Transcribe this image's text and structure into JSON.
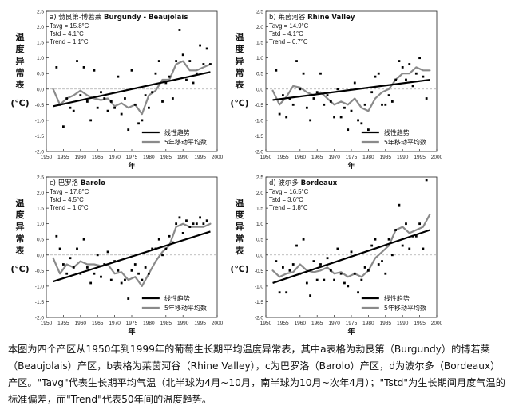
{
  "caption": "本图为四个产区从1950年到1999年的葡萄生长期平均温度异常表，其中a表格为勃艮第（Burgundy）的博若莱（Beaujolais）产区，b表格为莱茵河谷（Rhine Valley），c为巴罗洛（Barolo）产区，d为波尔多（Bordeaux）产区。\"Tavg\"代表生长期平均气温（北半球为4月~10月，南半球为10月~次年4月）；\"Tstd\"为生长期间月度气温的标准偏差，而\"Trend\"代表50年间的温度趋势。",
  "chart_data": [
    {
      "type": "scatter",
      "panel_label": "a)",
      "title_cn": "勃艮第-博若莱",
      "title_en": "Burgundy - Beaujolais",
      "stats": [
        "Tavg = 15.8°C",
        "Tstd =   4.1°C",
        "Trend = 1.1°C"
      ],
      "ylabel": "温度异常表",
      "yunit": "(℃)",
      "xlabel": "年",
      "xlim": [
        1950,
        2000
      ],
      "ylim": [
        -2.0,
        2.5
      ],
      "xticks": [
        "1950",
        "1955",
        "1960",
        "1965",
        "1970",
        "1975",
        "1980",
        "1985",
        "1990",
        "1995",
        "2000"
      ],
      "yticks": [
        "-2.0",
        "-1.5",
        "-1.0",
        "-0.5",
        "0.0",
        "0.5",
        "1.0",
        "1.5",
        "2.0",
        "2.5"
      ],
      "legend": [
        "线性趋势",
        "5年移动平均数"
      ],
      "legend_position": "bottom-right",
      "trend": {
        "x": [
          1952,
          1998
        ],
        "y": [
          -0.55,
          0.55
        ]
      },
      "points": {
        "x": [
          1953,
          1954,
          1955,
          1956,
          1957,
          1958,
          1959,
          1960,
          1961,
          1962,
          1963,
          1964,
          1965,
          1966,
          1967,
          1968,
          1969,
          1970,
          1971,
          1972,
          1973,
          1974,
          1975,
          1976,
          1977,
          1978,
          1979,
          1980,
          1981,
          1982,
          1983,
          1984,
          1985,
          1986,
          1987,
          1988,
          1989,
          1990,
          1991,
          1992,
          1993,
          1994,
          1995,
          1996,
          1997,
          1998
        ],
        "y": [
          0.7,
          -0.5,
          -1.2,
          -0.3,
          -0.6,
          -0.7,
          0.9,
          -0.2,
          0.7,
          -0.4,
          -1.0,
          0.6,
          -0.6,
          -0.1,
          -0.3,
          -0.7,
          -0.4,
          -0.6,
          0.4,
          -0.8,
          -0.3,
          -1.3,
          0.6,
          -0.5,
          -1.1,
          -1.0,
          -0.2,
          -0.6,
          -0.1,
          0.5,
          0.9,
          -0.4,
          0.2,
          0.4,
          -0.3,
          0.9,
          1.9,
          1.1,
          0.3,
          0.9,
          0.2,
          0.5,
          1.4,
          0.8,
          1.3,
          0.8
        ]
      },
      "moving_avg": {
        "x": [
          1952,
          1954,
          1956,
          1958,
          1960,
          1962,
          1964,
          1966,
          1968,
          1970,
          1972,
          1974,
          1976,
          1978,
          1980,
          1982,
          1984,
          1986,
          1988,
          1990,
          1992,
          1994,
          1996,
          1998
        ],
        "y": [
          0.0,
          -0.5,
          -0.3,
          -0.2,
          -0.05,
          -0.2,
          -0.3,
          -0.35,
          -0.3,
          -0.55,
          -0.45,
          -0.6,
          -0.5,
          -0.8,
          -0.2,
          -0.05,
          0.3,
          0.3,
          0.8,
          0.9,
          0.6,
          0.6,
          0.7,
          0.8
        ]
      }
    },
    {
      "type": "scatter",
      "panel_label": "b)",
      "title_cn": "莱茵河谷",
      "title_en": "Rhine Valley",
      "stats": [
        "Tavg = 14.9°C",
        "Tstd =   4.1°C",
        "Trend = 0.7°C"
      ],
      "ylabel": "温度异常表",
      "yunit": "(℃)",
      "xlabel": "年",
      "xlim": [
        1950,
        2000
      ],
      "ylim": [
        -2.0,
        2.5
      ],
      "xticks": [
        "1950",
        "1955",
        "1960",
        "1965",
        "1970",
        "1975",
        "1980",
        "1985",
        "1990",
        "1995",
        "2000"
      ],
      "yticks": [
        "-2.0",
        "-1.5",
        "-1.0",
        "-0.5",
        "0.0",
        "0.5",
        "1.0",
        "1.5",
        "2.0",
        "2.5"
      ],
      "legend": [
        "线性趋势",
        "5年移动平均数"
      ],
      "legend_position": "bottom-right",
      "trend": {
        "x": [
          1952,
          1998
        ],
        "y": [
          -0.35,
          0.3
        ]
      },
      "points": {
        "x": [
          1953,
          1954,
          1955,
          1956,
          1957,
          1958,
          1959,
          1960,
          1961,
          1962,
          1963,
          1964,
          1965,
          1966,
          1967,
          1968,
          1969,
          1970,
          1971,
          1972,
          1973,
          1974,
          1975,
          1976,
          1977,
          1978,
          1979,
          1980,
          1981,
          1982,
          1983,
          1984,
          1985,
          1986,
          1987,
          1988,
          1989,
          1990,
          1991,
          1992,
          1993,
          1994,
          1995,
          1996,
          1997
        ],
        "y": [
          0.6,
          -0.8,
          -0.2,
          -0.9,
          -0.3,
          -0.5,
          0.9,
          0.0,
          0.5,
          -0.6,
          -1.0,
          -0.3,
          -0.1,
          0.5,
          -0.5,
          -0.2,
          -0.4,
          -0.9,
          0.0,
          -0.9,
          -0.6,
          -1.3,
          -0.7,
          0.2,
          -1.0,
          -1.1,
          -0.5,
          -1.3,
          -0.1,
          0.4,
          0.5,
          -0.5,
          -0.5,
          -0.2,
          -0.4,
          0.3,
          0.9,
          0.7,
          0.3,
          0.8,
          0.1,
          0.5,
          1.0,
          0.4,
          -0.3
        ]
      },
      "moving_avg": {
        "x": [
          1952,
          1954,
          1956,
          1958,
          1960,
          1962,
          1964,
          1966,
          1968,
          1970,
          1972,
          1974,
          1976,
          1978,
          1980,
          1982,
          1984,
          1986,
          1988,
          1990,
          1992,
          1994,
          1996,
          1998
        ],
        "y": [
          -0.05,
          -0.5,
          -0.25,
          0.1,
          0.05,
          -0.1,
          -0.2,
          -0.1,
          -0.3,
          -0.5,
          -0.4,
          -0.5,
          -0.3,
          -0.6,
          -0.7,
          -0.3,
          -0.1,
          0.0,
          0.3,
          0.5,
          0.5,
          0.7,
          0.6,
          0.6
        ]
      }
    },
    {
      "type": "scatter",
      "panel_label": "c)",
      "title_cn": "巴罗洛",
      "title_en": "Barolo",
      "stats": [
        "Tavg = 17.8°C",
        "Tstd =   4.5°C",
        "Trend = 1.6°C"
      ],
      "ylabel": "温度异常表",
      "yunit": "(℃)",
      "xlabel": "年",
      "xlim": [
        1950,
        2000
      ],
      "ylim": [
        -2.0,
        2.5
      ],
      "xticks": [
        "1950",
        "1955",
        "1960",
        "1965",
        "1970",
        "1975",
        "1980",
        "1985",
        "1990",
        "1995",
        "2000"
      ],
      "yticks": [
        "-2.0",
        "-1.5",
        "-1.0",
        "-0.5",
        "0.0",
        "0.5",
        "1.0",
        "1.5",
        "2.0",
        "2.5"
      ],
      "legend": [
        "线性趋势",
        "5年移动平均数"
      ],
      "legend_position": "bottom-right",
      "trend": {
        "x": [
          1952,
          1998
        ],
        "y": [
          -0.85,
          0.75
        ]
      },
      "points": {
        "x": [
          1953,
          1954,
          1955,
          1956,
          1957,
          1958,
          1959,
          1960,
          1961,
          1962,
          1963,
          1964,
          1965,
          1966,
          1967,
          1968,
          1969,
          1970,
          1971,
          1972,
          1973,
          1974,
          1975,
          1976,
          1977,
          1978,
          1979,
          1980,
          1981,
          1982,
          1983,
          1984,
          1985,
          1986,
          1987,
          1988,
          1989,
          1990,
          1991,
          1992,
          1993,
          1994,
          1995,
          1996,
          1997
        ],
        "y": [
          0.6,
          0.2,
          -0.3,
          -0.6,
          -0.1,
          -0.4,
          0.2,
          -0.6,
          0.5,
          -0.4,
          -0.9,
          -0.6,
          0.0,
          -0.7,
          -0.3,
          0.1,
          -0.8,
          -0.2,
          -0.5,
          -0.9,
          -0.8,
          -1.4,
          -0.5,
          -0.3,
          -0.6,
          -0.8,
          -0.4,
          -0.6,
          0.2,
          0.2,
          0.5,
          0.0,
          0.2,
          0.6,
          0.4,
          1.0,
          1.2,
          0.7,
          1.1,
          0.9,
          1.0,
          1.0,
          1.2,
          1.0,
          1.1
        ]
      },
      "moving_avg": {
        "x": [
          1952,
          1954,
          1956,
          1958,
          1960,
          1962,
          1964,
          1966,
          1968,
          1970,
          1972,
          1974,
          1976,
          1978,
          1980,
          1982,
          1984,
          1986,
          1988,
          1990,
          1992,
          1994,
          1996,
          1998
        ],
        "y": [
          -0.1,
          -0.6,
          -0.3,
          -0.4,
          -0.2,
          -0.3,
          -0.3,
          -0.35,
          -0.3,
          -0.6,
          -0.55,
          -0.8,
          -0.7,
          -1.0,
          -0.6,
          -0.2,
          0.1,
          0.3,
          0.9,
          1.0,
          0.9,
          0.9,
          0.9,
          1.0
        ]
      }
    },
    {
      "type": "scatter",
      "panel_label": "d)",
      "title_cn": "波尔多",
      "title_en": "Bordeaux",
      "stats": [
        "Tavg = 16.5°C",
        "Tstd =   3.6°C",
        "Trend = 1.8°C"
      ],
      "ylabel": "温度异常表",
      "yunit": "(℃)",
      "xlabel": "年",
      "xlim": [
        1950,
        2000
      ],
      "ylim": [
        -2.0,
        2.5
      ],
      "xticks": [
        "1950",
        "1955",
        "1960",
        "1965",
        "1970",
        "1975",
        "1980",
        "1985",
        "1990",
        "1995",
        "2000"
      ],
      "yticks": [
        "-2.0",
        "-1.5",
        "-1.0",
        "-0.5",
        "0.0",
        "0.5",
        "1.0",
        "1.5",
        "2.0",
        "2.5"
      ],
      "legend": [
        "线性趋势",
        "5年移动平均数"
      ],
      "legend_position": "bottom-right",
      "trend": {
        "x": [
          1952,
          1998
        ],
        "y": [
          -0.9,
          0.8
        ]
      },
      "points": {
        "x": [
          1953,
          1954,
          1955,
          1956,
          1957,
          1958,
          1959,
          1960,
          1961,
          1962,
          1963,
          1964,
          1965,
          1966,
          1967,
          1968,
          1969,
          1970,
          1971,
          1972,
          1973,
          1974,
          1975,
          1976,
          1977,
          1978,
          1979,
          1980,
          1981,
          1982,
          1983,
          1984,
          1985,
          1986,
          1987,
          1988,
          1989,
          1990,
          1991,
          1992,
          1993,
          1994,
          1995,
          1996,
          1997
        ],
        "y": [
          -0.2,
          -1.2,
          -0.4,
          -1.2,
          -0.5,
          -0.3,
          0.3,
          -0.6,
          0.5,
          -0.9,
          -1.3,
          -0.2,
          -0.8,
          -0.3,
          -0.8,
          -0.1,
          -0.5,
          -0.8,
          0.2,
          -0.6,
          -0.9,
          -1.0,
          0.1,
          -0.6,
          -1.2,
          -0.8,
          -0.4,
          -0.5,
          0.3,
          0.5,
          -0.3,
          -0.2,
          -0.6,
          0.5,
          0.0,
          0.8,
          1.6,
          0.3,
          1.0,
          0.2,
          0.6,
          0.6,
          1.0,
          0.2,
          2.4
        ]
      },
      "moving_avg": {
        "x": [
          1952,
          1954,
          1956,
          1958,
          1960,
          1962,
          1964,
          1966,
          1968,
          1970,
          1972,
          1974,
          1976,
          1978,
          1980,
          1982,
          1984,
          1986,
          1988,
          1990,
          1992,
          1994,
          1996,
          1998
        ],
        "y": [
          -0.5,
          -0.7,
          -0.6,
          -0.55,
          -0.3,
          -0.5,
          -0.55,
          -0.5,
          -0.4,
          -0.6,
          -0.55,
          -0.7,
          -0.6,
          -0.7,
          -0.5,
          -0.1,
          0.1,
          0.3,
          0.8,
          0.9,
          0.7,
          0.8,
          0.9,
          1.3
        ]
      }
    }
  ]
}
